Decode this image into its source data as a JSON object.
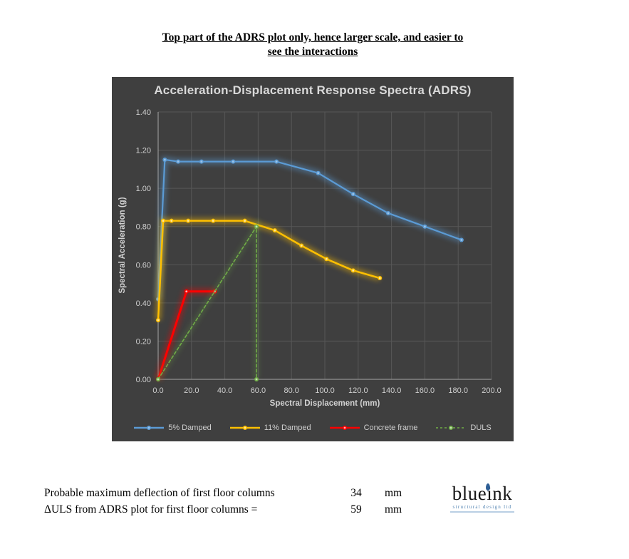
{
  "header": {
    "line1": "Top part of the ADRS plot only, hence larger scale, and easier to",
    "line2": "see the interactions"
  },
  "chart": {
    "background": "#3F3F3F",
    "title_color": "#D9D9D9",
    "grid_color": "#575757",
    "axis_color": "#A6A6A6",
    "tick_color": "#CFCFCF"
  },
  "chart_data": {
    "type": "line",
    "title": "Acceleration-Displacement Response Spectra (ADRS)",
    "xlabel": "Spectral Displacement (mm)",
    "ylabel": "Spectral Acceleration (g)",
    "xlim": [
      0,
      200
    ],
    "ylim": [
      0,
      1.4
    ],
    "grid": true,
    "legend_position": "bottom",
    "x_tick_values": [
      0,
      20,
      40,
      60,
      80,
      100,
      120,
      140,
      160,
      180,
      200
    ],
    "x_ticks": [
      "0.0",
      "20.0",
      "40.0",
      "60.0",
      "80.0",
      "100.0",
      "120.0",
      "140.0",
      "160.0",
      "180.0",
      "200.0"
    ],
    "y_tick_values": [
      0,
      0.2,
      0.4,
      0.6,
      0.8,
      1.0,
      1.2,
      1.4
    ],
    "y_ticks": [
      "0.00",
      "0.20",
      "0.40",
      "0.60",
      "0.80",
      "1.00",
      "1.20",
      "1.40"
    ],
    "series": [
      {
        "name": "5% Damped",
        "color": "#5B9BD5",
        "marker": "#9DC3E6",
        "dash": "solid",
        "width": 2.2,
        "points": [
          [
            0,
            0.42
          ],
          [
            4,
            1.15
          ],
          [
            12,
            1.14
          ],
          [
            26,
            1.14
          ],
          [
            45,
            1.14
          ],
          [
            71,
            1.14
          ],
          [
            96,
            1.08
          ],
          [
            117,
            0.97
          ],
          [
            138,
            0.87
          ],
          [
            160,
            0.8
          ],
          [
            182,
            0.73
          ]
        ]
      },
      {
        "name": "11% Damped",
        "color": "#FFC000",
        "marker": "#FFE699",
        "dash": "solid",
        "width": 2.5,
        "points": [
          [
            0,
            0.31
          ],
          [
            3,
            0.83
          ],
          [
            8,
            0.83
          ],
          [
            18,
            0.83
          ],
          [
            33,
            0.83
          ],
          [
            52,
            0.83
          ],
          [
            70,
            0.78
          ],
          [
            86,
            0.7
          ],
          [
            101,
            0.63
          ],
          [
            117,
            0.57
          ],
          [
            133,
            0.53
          ]
        ]
      },
      {
        "name": "Concrete frame",
        "color": "#FF0000",
        "marker": "#FFB3B3",
        "dash": "solid",
        "width": 3,
        "points": [
          [
            0,
            0
          ],
          [
            17,
            0.46
          ],
          [
            34,
            0.46
          ]
        ]
      },
      {
        "name": "DULS",
        "color": "#70AD47",
        "marker": "#C5E0B4",
        "dash": "dashed",
        "width": 1.6,
        "points": [
          [
            0,
            0
          ],
          [
            59,
            0.8
          ],
          [
            59,
            0
          ]
        ]
      }
    ]
  },
  "summary": {
    "rows": [
      {
        "label": "Probable maximum deflection of first floor columns",
        "value": "34",
        "unit": "mm"
      },
      {
        "label": "ΔULS from ADRS plot for first floor columns =",
        "value": "59",
        "unit": "mm"
      }
    ]
  },
  "logo": {
    "name": "blueink",
    "tagline": "structural design ltd",
    "ink_color": "#2E5F96",
    "tagline_color": "#4F81B0"
  }
}
